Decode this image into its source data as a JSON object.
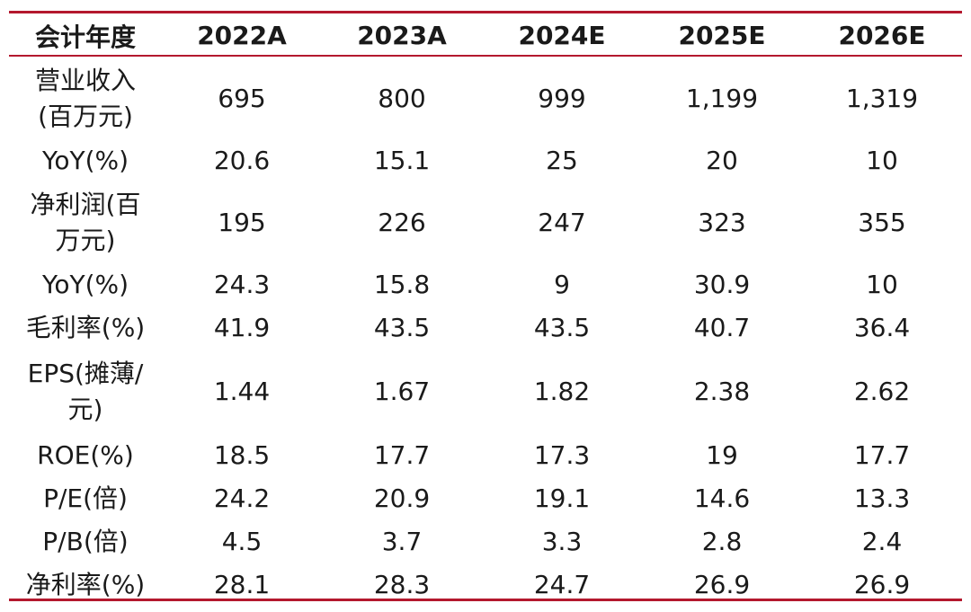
{
  "header": {
    "label": "会计年度",
    "years": [
      "2022A",
      "2023A",
      "2024E",
      "2025E",
      "2026E"
    ]
  },
  "rows": [
    {
      "label_lines": [
        "营业收入",
        "(百万元)"
      ],
      "values": [
        "695",
        "800",
        "999",
        "1,199",
        "1,319"
      ]
    },
    {
      "label_lines": [
        "YoY(%)"
      ],
      "values": [
        "20.6",
        "15.1",
        "25",
        "20",
        "10"
      ]
    },
    {
      "label_lines": [
        "净利润(百",
        "万元)"
      ],
      "values": [
        "195",
        "226",
        "247",
        "323",
        "355"
      ]
    },
    {
      "label_lines": [
        "YoY(%)"
      ],
      "values": [
        "24.3",
        "15.8",
        "9",
        "30.9",
        "10"
      ]
    },
    {
      "label_lines": [
        "毛利率(%)"
      ],
      "values": [
        "41.9",
        "43.5",
        "43.5",
        "40.7",
        "36.4"
      ]
    },
    {
      "label_lines": [
        "EPS(摊薄/",
        "元)"
      ],
      "values": [
        "1.44",
        "1.67",
        "1.82",
        "2.38",
        "2.62"
      ]
    },
    {
      "label_lines": [
        "ROE(%)"
      ],
      "values": [
        "18.5",
        "17.7",
        "17.3",
        "19",
        "17.7"
      ]
    },
    {
      "label_lines": [
        "P/E(倍)"
      ],
      "values": [
        "24.2",
        "20.9",
        "19.1",
        "14.6",
        "13.3"
      ]
    },
    {
      "label_lines": [
        "P/B(倍)"
      ],
      "values": [
        "4.5",
        "3.7",
        "3.3",
        "2.8",
        "2.4"
      ]
    },
    {
      "label_lines": [
        "净利率(%)"
      ],
      "values": [
        "28.1",
        "28.3",
        "24.7",
        "26.9",
        "26.9"
      ]
    }
  ],
  "colors": {
    "rule": "#b4182e",
    "text": "#1a1a1a"
  }
}
